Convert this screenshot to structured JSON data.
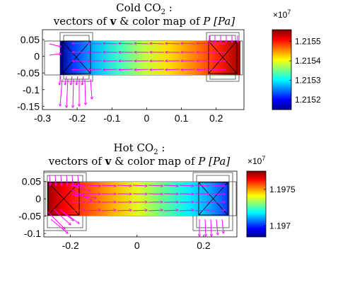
{
  "chart_data": [
    {
      "type": "heatmap",
      "title_line1": "Cold CO",
      "title_sub": "2",
      "title_colon": " :",
      "title_line2_a": "vectors of ",
      "title_line2_bold": "v",
      "title_line2_b": " & color map of ",
      "title_line2_var": "P",
      "title_line2_unit": "[Pa]",
      "xlim": [
        -0.3,
        0.28
      ],
      "ylim": [
        -0.16,
        0.08
      ],
      "xticks": [
        -0.3,
        -0.2,
        -0.1,
        0,
        0.1,
        0.2
      ],
      "xtick_labels": [
        "-0.3",
        "-0.2",
        "-0.1",
        "0",
        "0.1",
        "0.2"
      ],
      "yticks": [
        0.05,
        0,
        -0.05,
        -0.1,
        -0.15
      ],
      "ytick_labels": [
        "0.05",
        "0",
        "-0.05",
        "-0.1",
        "-0.15"
      ],
      "colorbar": {
        "exponent_base": "×10",
        "exponent_power": "7",
        "range": [
          1.21515,
          1.21556
        ],
        "ticks": [
          1.2155,
          1.2154,
          1.2153,
          1.2152
        ],
        "tick_labels": [
          "1.2155",
          "1.2154",
          "1.2153",
          "1.2152"
        ]
      },
      "pressure_gradient": "high near inlet at right (x≈0.2), low near outlet at left (x≈-0.25)",
      "vector_color": "#ff00ff"
    },
    {
      "type": "heatmap",
      "title_line1": "Hot CO",
      "title_sub": "2",
      "title_colon": " :",
      "title_line2_a": "vectors of ",
      "title_line2_bold": "v",
      "title_line2_b": " & color map of ",
      "title_line2_var": "P",
      "title_line2_unit": "[Pa]",
      "xlim": [
        -0.28,
        0.3
      ],
      "ylim": [
        -0.11,
        0.08
      ],
      "xticks": [
        -0.2,
        0,
        0.2
      ],
      "xtick_labels": [
        "-0.2",
        "0",
        "0.2"
      ],
      "yticks": [
        0.05,
        0,
        -0.05,
        -0.1
      ],
      "ytick_labels": [
        "0.05",
        "0",
        "-0.05",
        "-0.1"
      ],
      "colorbar": {
        "exponent_base": "×10",
        "exponent_power": "7",
        "range": [
          1.19685,
          1.19775
        ],
        "ticks": [
          1.1975,
          1.197
        ],
        "tick_labels": [
          "1.1975",
          "1.197"
        ]
      },
      "pressure_gradient": "high near inlet at left (x≈-0.22), low near outlet at right (x≈0.2)",
      "vector_color": "#ff00ff"
    }
  ]
}
